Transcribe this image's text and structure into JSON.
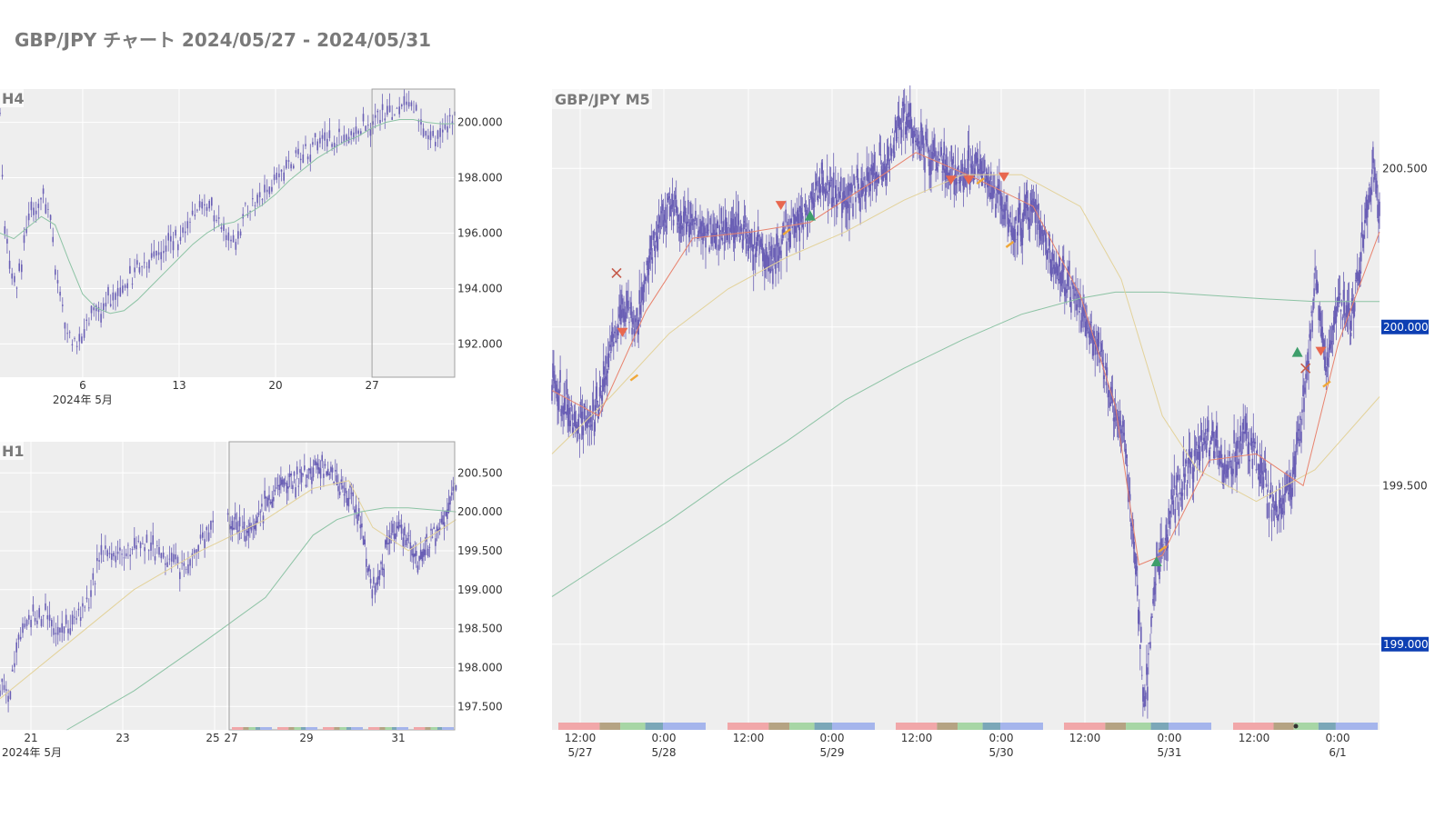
{
  "page": {
    "title": "GBP/JPY チャート 2024/05/27 - 2024/05/31"
  },
  "colors": {
    "background": "#ffffff",
    "plot_bg": "#eeeeee",
    "grid": "#ffffff",
    "candle": "#6a5fb5",
    "ma_fast": "#e8836e",
    "ma_mid": "#e3d29a",
    "ma_slow": "#8cc3a4",
    "current_price_badge": "#0d3fb3",
    "sell_marker": "#e8674f",
    "buy_marker": "#3e9e6b",
    "exit_marker": "#c55a4a",
    "order_marker": "#f0a838",
    "session_asia": "#f1a7a9",
    "session_europe_open": "#b5a383",
    "session_europe": "#a7d6a5",
    "session_overlap": "#7ba7b8",
    "session_ny": "#a5b5ec"
  },
  "chart_data": [
    {
      "id": "h4",
      "type": "candlestick",
      "panel_label": "H4",
      "x_ticks": [
        "6",
        "13",
        "20",
        "27"
      ],
      "x_sublabel": "2024年 5月",
      "y_ticks": [
        "192.000",
        "194.000",
        "196.000",
        "198.000",
        "200.000"
      ],
      "ylim": [
        190.8,
        201.2
      ],
      "days": 33,
      "days_before_first_tick": 6,
      "highlight_window": "5/27 - 5/31",
      "close_path": [
        [
          0,
          200.6
        ],
        [
          0.3,
          196.2
        ],
        [
          1.2,
          193.8
        ],
        [
          2.2,
          197.0
        ],
        [
          3.2,
          197.2
        ],
        [
          3.7,
          196.4
        ],
        [
          4.2,
          194.0
        ],
        [
          4.8,
          192.5
        ],
        [
          5.8,
          191.9
        ],
        [
          6.6,
          193.2
        ],
        [
          7.2,
          193.3
        ],
        [
          8.2,
          193.6
        ],
        [
          9.2,
          194.2
        ],
        [
          10.2,
          194.8
        ],
        [
          11.2,
          195.1
        ],
        [
          12.2,
          195.5
        ],
        [
          13.2,
          196.0
        ],
        [
          14.2,
          196.8
        ],
        [
          15.2,
          196.9
        ],
        [
          16.2,
          196.1
        ],
        [
          17.2,
          195.6
        ],
        [
          17.8,
          196.8
        ],
        [
          18.8,
          197.2
        ],
        [
          19.8,
          197.8
        ],
        [
          20.8,
          198.4
        ],
        [
          21.8,
          198.8
        ],
        [
          22.8,
          199.2
        ],
        [
          23.8,
          199.3
        ],
        [
          24.8,
          199.4
        ],
        [
          25.8,
          199.7
        ],
        [
          26.8,
          199.9
        ],
        [
          27.8,
          200.3
        ],
        [
          28.8,
          200.5
        ],
        [
          29.8,
          200.4
        ],
        [
          30.8,
          199.8
        ],
        [
          31.4,
          199.3
        ],
        [
          32.0,
          199.6
        ],
        [
          33.0,
          200.3
        ]
      ],
      "ma": [
        [
          0,
          196.0
        ],
        [
          1,
          195.8
        ],
        [
          2,
          196.2
        ],
        [
          3,
          196.6
        ],
        [
          4,
          196.3
        ],
        [
          5,
          195.0
        ],
        [
          6,
          193.8
        ],
        [
          7,
          193.3
        ],
        [
          8,
          193.1
        ],
        [
          9,
          193.2
        ],
        [
          10,
          193.6
        ],
        [
          11,
          194.1
        ],
        [
          12,
          194.6
        ],
        [
          13,
          195.1
        ],
        [
          14,
          195.6
        ],
        [
          15,
          196.0
        ],
        [
          16,
          196.3
        ],
        [
          17,
          196.4
        ],
        [
          18,
          196.7
        ],
        [
          19,
          197.0
        ],
        [
          20,
          197.4
        ],
        [
          21,
          197.9
        ],
        [
          22,
          198.3
        ],
        [
          23,
          198.7
        ],
        [
          24,
          199.0
        ],
        [
          25,
          199.3
        ],
        [
          26,
          199.5
        ],
        [
          27,
          199.8
        ],
        [
          28,
          200.0
        ],
        [
          29,
          200.1
        ],
        [
          30,
          200.1
        ],
        [
          31,
          200.0
        ],
        [
          32,
          199.95
        ],
        [
          33,
          199.95
        ]
      ]
    },
    {
      "id": "h1",
      "type": "candlestick",
      "panel_label": "H1",
      "x_ticks": [
        "21",
        "23",
        "25",
        "27",
        "29",
        "31"
      ],
      "x_sublabel": "2024年 5月",
      "y_ticks": [
        "197.500",
        "198.000",
        "198.500",
        "199.000",
        "199.500",
        "200.000",
        "200.500"
      ],
      "ylim": [
        197.2,
        200.9
      ],
      "days": 12.5,
      "days_before_first_tick": 0.4,
      "highlight_window": "5/27 - 5/31",
      "close_path": [
        [
          0,
          197.8
        ],
        [
          0.3,
          197.7
        ],
        [
          0.5,
          198.3
        ],
        [
          0.9,
          198.6
        ],
        [
          1.3,
          198.7
        ],
        [
          1.8,
          198.5
        ],
        [
          2.3,
          198.6
        ],
        [
          2.7,
          198.9
        ],
        [
          3.0,
          199.5
        ],
        [
          3.5,
          199.4
        ],
        [
          4.0,
          199.6
        ],
        [
          4.5,
          199.5
        ],
        [
          5.0,
          199.4
        ],
        [
          5.5,
          199.3
        ],
        [
          6.0,
          199.6
        ],
        [
          6.4,
          199.9
        ],
        [
          6.8,
          199.8
        ],
        [
          7.2,
          199.7
        ],
        [
          7.6,
          199.9
        ],
        [
          8.0,
          200.1
        ],
        [
          8.5,
          200.3
        ],
        [
          9.0,
          200.4
        ],
        [
          9.5,
          200.4
        ],
        [
          10.0,
          200.5
        ],
        [
          10.4,
          200.6
        ],
        [
          10.8,
          200.5
        ],
        [
          11.2,
          200.3
        ],
        [
          11.6,
          200.2
        ],
        [
          12.0,
          199.9
        ],
        [
          12.3,
          199.2
        ],
        [
          12.6,
          199.0
        ],
        [
          12.8,
          199.2
        ],
        [
          13.2,
          199.6
        ],
        [
          13.6,
          199.8
        ],
        [
          14.0,
          199.6
        ],
        [
          14.4,
          199.4
        ],
        [
          14.8,
          199.6
        ],
        [
          15.2,
          199.8
        ],
        [
          15.6,
          200.0
        ],
        [
          16.0,
          200.4
        ]
      ],
      "ma_fast": [
        [
          0,
          197.6
        ],
        [
          2,
          198.3
        ],
        [
          4,
          199.0
        ],
        [
          6,
          199.5
        ],
        [
          8,
          199.9
        ],
        [
          10,
          200.3
        ],
        [
          11.5,
          200.4
        ],
        [
          12.5,
          199.8
        ],
        [
          14,
          199.5
        ],
        [
          15,
          199.7
        ],
        [
          16,
          199.9
        ]
      ],
      "ma_slow": [
        [
          2,
          197.2
        ],
        [
          4,
          197.7
        ],
        [
          6,
          198.3
        ],
        [
          8,
          198.9
        ],
        [
          9,
          199.3
        ],
        [
          10,
          199.7
        ],
        [
          11,
          199.9
        ],
        [
          12,
          200.0
        ],
        [
          13,
          200.05
        ],
        [
          14,
          200.05
        ],
        [
          16,
          200.0
        ]
      ]
    },
    {
      "id": "m5",
      "type": "candlestick",
      "panel_label": "GBP/JPY M5",
      "x_ticks": [
        "12:00\n5/27",
        "0:00\n5/28",
        "12:00",
        "0:00\n5/29",
        "12:00",
        "0:00\n5/30",
        "12:00",
        "0:00\n5/31",
        "12:00",
        "0:00\n6/1"
      ],
      "y_ticks": [
        "199.000",
        "199.500",
        "200.000",
        "200.500"
      ],
      "ylim": [
        198.73,
        200.75
      ],
      "current_price_badges": [
        "199.000",
        "200.000"
      ],
      "sessions": [
        "Asia",
        "Europe open",
        "Europe",
        "London/NY overlap",
        "New York"
      ],
      "trade_markers": [
        {
          "t": 0.55,
          "kind": "exit",
          "price": 200.17
        },
        {
          "t": 0.6,
          "kind": "sell",
          "price": 199.98
        },
        {
          "t": 0.7,
          "kind": "order",
          "price": 199.84
        },
        {
          "t": 1.95,
          "kind": "sell",
          "price": 200.38
        },
        {
          "t": 2.0,
          "kind": "order",
          "price": 200.3
        },
        {
          "t": 2.2,
          "kind": "buy",
          "price": 200.35
        },
        {
          "t": 3.4,
          "kind": "sell",
          "price": 200.46
        },
        {
          "t": 3.55,
          "kind": "sell",
          "price": 200.46
        },
        {
          "t": 3.65,
          "kind": "order",
          "price": 200.46
        },
        {
          "t": 3.85,
          "kind": "sell",
          "price": 200.47
        },
        {
          "t": 3.9,
          "kind": "order",
          "price": 200.26
        },
        {
          "t": 5.15,
          "kind": "buy",
          "price": 199.26
        },
        {
          "t": 5.2,
          "kind": "order",
          "price": 199.3
        },
        {
          "t": 6.35,
          "kind": "buy",
          "price": 199.92
        },
        {
          "t": 6.42,
          "kind": "exit",
          "price": 199.87
        },
        {
          "t": 6.55,
          "kind": "sell",
          "price": 199.92
        },
        {
          "t": 6.6,
          "kind": "order",
          "price": 199.82
        }
      ],
      "close_path": [
        [
          0,
          199.85
        ],
        [
          0.08,
          199.78
        ],
        [
          0.22,
          199.68
        ],
        [
          0.4,
          199.75
        ],
        [
          0.5,
          199.95
        ],
        [
          0.6,
          200.05
        ],
        [
          0.72,
          200.0
        ],
        [
          0.85,
          200.25
        ],
        [
          1.0,
          200.38
        ],
        [
          1.2,
          200.32
        ],
        [
          1.4,
          200.28
        ],
        [
          1.55,
          200.33
        ],
        [
          1.75,
          200.25
        ],
        [
          1.85,
          200.2
        ],
        [
          2.0,
          200.3
        ],
        [
          2.15,
          200.35
        ],
        [
          2.3,
          200.45
        ],
        [
          2.45,
          200.4
        ],
        [
          2.65,
          200.45
        ],
        [
          2.85,
          200.52
        ],
        [
          3.0,
          200.68
        ],
        [
          3.1,
          200.6
        ],
        [
          3.3,
          200.52
        ],
        [
          3.45,
          200.48
        ],
        [
          3.65,
          200.5
        ],
        [
          3.8,
          200.42
        ],
        [
          3.95,
          200.3
        ],
        [
          4.1,
          200.4
        ],
        [
          4.25,
          200.2
        ],
        [
          4.45,
          200.1
        ],
        [
          4.65,
          199.95
        ],
        [
          4.78,
          199.75
        ],
        [
          4.88,
          199.65
        ],
        [
          4.98,
          199.2
        ],
        [
          5.05,
          198.8
        ],
        [
          5.15,
          199.25
        ],
        [
          5.3,
          199.45
        ],
        [
          5.45,
          199.58
        ],
        [
          5.6,
          199.65
        ],
        [
          5.75,
          199.55
        ],
        [
          5.9,
          199.65
        ],
        [
          6.05,
          199.55
        ],
        [
          6.15,
          199.4
        ],
        [
          6.3,
          199.5
        ],
        [
          6.4,
          199.75
        ],
        [
          6.5,
          200.15
        ],
        [
          6.6,
          199.85
        ],
        [
          6.7,
          200.1
        ],
        [
          6.8,
          200.0
        ],
        [
          6.9,
          200.25
        ],
        [
          7.0,
          200.5
        ],
        [
          7.05,
          200.35
        ]
      ],
      "ma_fast": [
        [
          0,
          199.8
        ],
        [
          0.4,
          199.72
        ],
        [
          0.8,
          200.05
        ],
        [
          1.2,
          200.28
        ],
        [
          1.7,
          200.3
        ],
        [
          2.2,
          200.33
        ],
        [
          2.7,
          200.45
        ],
        [
          3.1,
          200.55
        ],
        [
          3.6,
          200.47
        ],
        [
          4.1,
          200.38
        ],
        [
          4.5,
          200.1
        ],
        [
          4.8,
          199.75
        ],
        [
          5.0,
          199.25
        ],
        [
          5.2,
          199.28
        ],
        [
          5.6,
          199.58
        ],
        [
          6.0,
          199.6
        ],
        [
          6.4,
          199.5
        ],
        [
          6.7,
          199.95
        ],
        [
          7.05,
          200.3
        ]
      ],
      "ma_mid": [
        [
          0,
          199.6
        ],
        [
          0.5,
          199.78
        ],
        [
          1.0,
          199.98
        ],
        [
          1.5,
          200.12
        ],
        [
          2.0,
          200.22
        ],
        [
          2.5,
          200.3
        ],
        [
          3.0,
          200.4
        ],
        [
          3.5,
          200.48
        ],
        [
          4.0,
          200.48
        ],
        [
          4.5,
          200.38
        ],
        [
          4.85,
          200.15
        ],
        [
          5.2,
          199.72
        ],
        [
          5.5,
          199.55
        ],
        [
          6.0,
          199.45
        ],
        [
          6.5,
          199.55
        ],
        [
          7.05,
          199.78
        ]
      ],
      "ma_slow": [
        [
          0,
          199.15
        ],
        [
          0.5,
          199.27
        ],
        [
          1.0,
          199.39
        ],
        [
          1.5,
          199.52
        ],
        [
          2.0,
          199.64
        ],
        [
          2.5,
          199.77
        ],
        [
          3.0,
          199.87
        ],
        [
          3.5,
          199.96
        ],
        [
          4.0,
          200.04
        ],
        [
          4.5,
          200.09
        ],
        [
          4.8,
          200.11
        ],
        [
          5.2,
          200.11
        ],
        [
          5.6,
          200.1
        ],
        [
          6.0,
          200.09
        ],
        [
          6.5,
          200.08
        ],
        [
          7.05,
          200.08
        ]
      ]
    }
  ]
}
